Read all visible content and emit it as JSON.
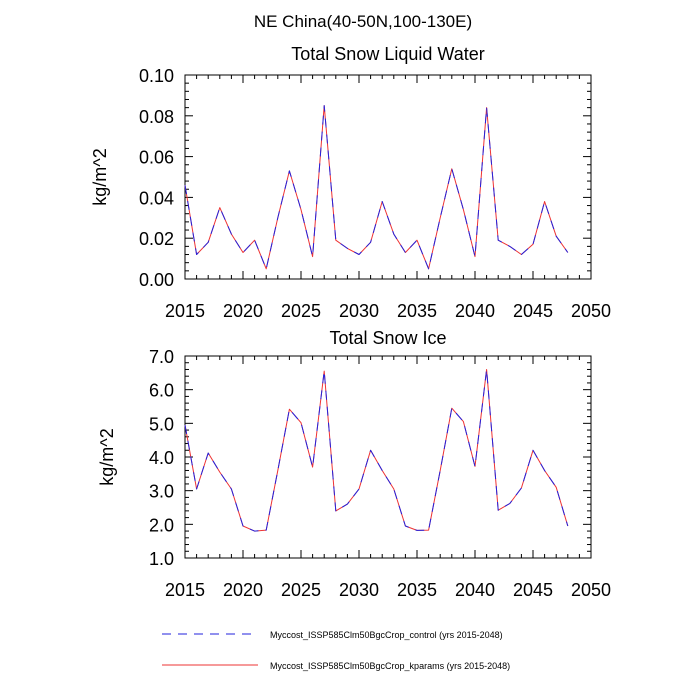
{
  "figure_title": "NE China(40-50N,100-130E)",
  "colors": {
    "control": "#2222dd",
    "kparams": "#ee3333",
    "axis": "#000000"
  },
  "legend": [
    {
      "label": "Myccost_ISSP585Clm50BgcCrop_control (yrs 2015-2048)",
      "style": "dashed",
      "color": "#2222dd"
    },
    {
      "label": "Myccost_ISSP585Clm50BgcCrop_kparams (yrs 2015-2048)",
      "style": "solid",
      "color": "#ee3333"
    }
  ],
  "chart_data": [
    {
      "type": "line",
      "title": "Total Snow Liquid Water",
      "xlabel": "",
      "ylabel": "kg/m^2",
      "xlim": [
        2015,
        2050
      ],
      "ylim": [
        0.0,
        0.1
      ],
      "xticks": [
        2015,
        2020,
        2025,
        2030,
        2035,
        2040,
        2045,
        2050
      ],
      "yticks": [
        0.0,
        0.02,
        0.04,
        0.06,
        0.08,
        0.1
      ],
      "ytick_labels": [
        "0.00",
        "0.02",
        "0.04",
        "0.06",
        "0.08",
        "0.10"
      ],
      "x": [
        2015,
        2016,
        2017,
        2018,
        2019,
        2020,
        2021,
        2022,
        2023,
        2024,
        2025,
        2026,
        2027,
        2028,
        2029,
        2030,
        2031,
        2032,
        2033,
        2034,
        2035,
        2036,
        2037,
        2038,
        2039,
        2040,
        2041,
        2042,
        2043,
        2044,
        2045,
        2046,
        2047,
        2048
      ],
      "series": [
        {
          "name": "Myccost_ISSP585Clm50BgcCrop_control (yrs 2015-2048)",
          "values": [
            0.046,
            0.012,
            0.018,
            0.035,
            0.022,
            0.013,
            0.019,
            0.005,
            0.03,
            0.053,
            0.034,
            0.011,
            0.085,
            0.019,
            0.015,
            0.012,
            0.018,
            0.038,
            0.022,
            0.013,
            0.019,
            0.005,
            0.03,
            0.054,
            0.034,
            0.011,
            0.084,
            0.019,
            0.016,
            0.012,
            0.017,
            0.038,
            0.021,
            0.013
          ]
        },
        {
          "name": "Myccost_ISSP585Clm50BgcCrop_kparams (yrs 2015-2048)",
          "values": [
            0.046,
            0.012,
            0.018,
            0.035,
            0.022,
            0.013,
            0.019,
            0.005,
            0.03,
            0.053,
            0.034,
            0.011,
            0.085,
            0.019,
            0.015,
            0.012,
            0.018,
            0.038,
            0.022,
            0.013,
            0.019,
            0.005,
            0.03,
            0.054,
            0.034,
            0.011,
            0.084,
            0.019,
            0.016,
            0.012,
            0.017,
            0.038,
            0.021,
            0.013
          ]
        }
      ]
    },
    {
      "type": "line",
      "title": "Total Snow Ice",
      "xlabel": "",
      "ylabel": "kg/m^2",
      "xlim": [
        2015,
        2050
      ],
      "ylim": [
        1.0,
        7.0
      ],
      "xticks": [
        2015,
        2020,
        2025,
        2030,
        2035,
        2040,
        2045,
        2050
      ],
      "yticks": [
        1.0,
        2.0,
        3.0,
        4.0,
        5.0,
        6.0,
        7.0
      ],
      "ytick_labels": [
        "1.0",
        "2.0",
        "3.0",
        "4.0",
        "5.0",
        "6.0",
        "7.0"
      ],
      "x": [
        2015,
        2016,
        2017,
        2018,
        2019,
        2020,
        2021,
        2022,
        2023,
        2024,
        2025,
        2026,
        2027,
        2028,
        2029,
        2030,
        2031,
        2032,
        2033,
        2034,
        2035,
        2036,
        2037,
        2038,
        2039,
        2040,
        2041,
        2042,
        2043,
        2044,
        2045,
        2046,
        2047,
        2048
      ],
      "series": [
        {
          "name": "Myccost_ISSP585Clm50BgcCrop_control (yrs 2015-2048)",
          "values": [
            4.95,
            3.05,
            4.12,
            3.55,
            3.05,
            1.95,
            1.8,
            1.83,
            3.6,
            5.42,
            5.02,
            3.7,
            6.55,
            2.4,
            2.6,
            3.05,
            4.2,
            3.6,
            3.05,
            1.95,
            1.82,
            1.83,
            3.6,
            5.45,
            5.05,
            3.72,
            6.6,
            2.42,
            2.62,
            3.08,
            4.2,
            3.6,
            3.1,
            1.95
          ]
        },
        {
          "name": "Myccost_ISSP585Clm50BgcCrop_kparams (yrs 2015-2048)",
          "values": [
            4.95,
            3.05,
            4.12,
            3.55,
            3.05,
            1.95,
            1.8,
            1.83,
            3.6,
            5.42,
            5.02,
            3.7,
            6.55,
            2.4,
            2.6,
            3.05,
            4.2,
            3.6,
            3.05,
            1.95,
            1.82,
            1.83,
            3.6,
            5.45,
            5.05,
            3.72,
            6.6,
            2.42,
            2.62,
            3.08,
            4.2,
            3.6,
            3.1,
            1.95
          ]
        }
      ]
    }
  ]
}
